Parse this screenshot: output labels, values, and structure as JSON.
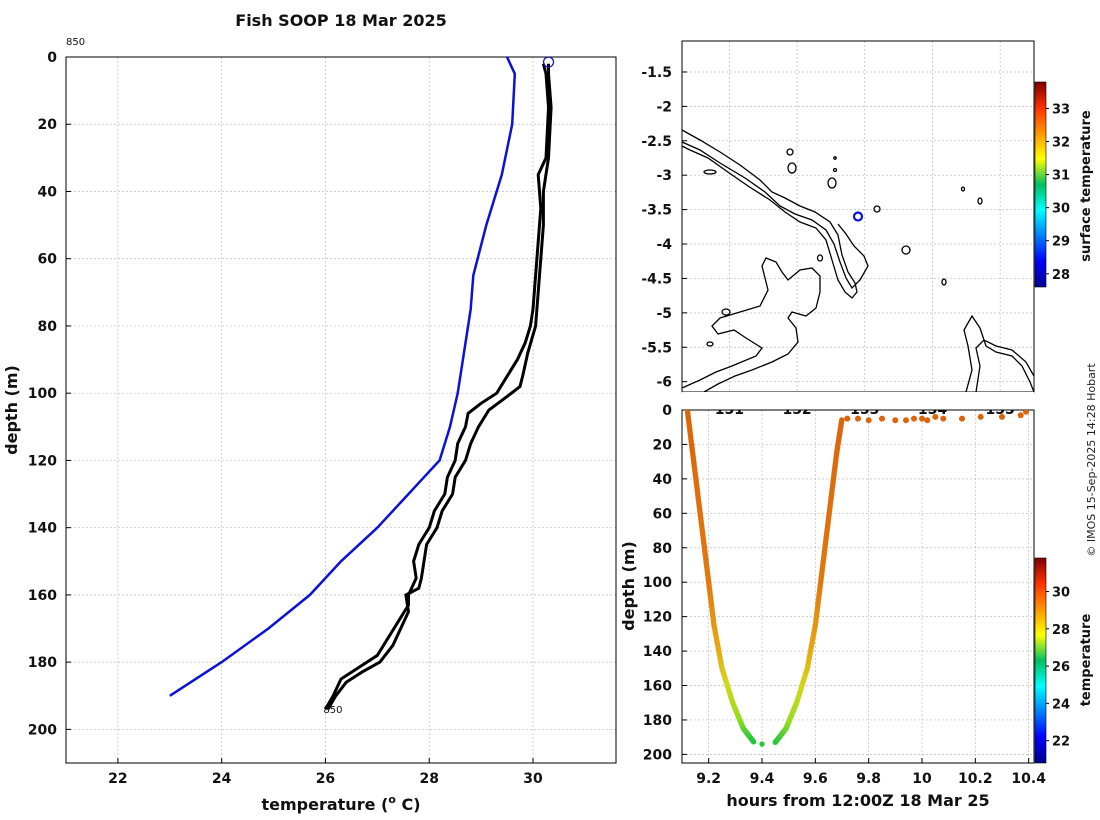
{
  "title": "Fish SOOP 18 Mar 2025",
  "credit": "© IMOS 15-Sep-2025 14:28 Hobart",
  "colors": {
    "climatology": "#0a12d8",
    "profile": "#000000",
    "marker": "#1a1aa8"
  },
  "chart_data": [
    {
      "id": "profile",
      "type": "line",
      "xlabel_main": "temperature (",
      "xlabel_sup": "o",
      "xlabel_end": " C)",
      "ylabel": "depth (m)",
      "xlim": [
        21,
        31.6
      ],
      "ylim": [
        210,
        0
      ],
      "xticks": [
        22,
        24,
        26,
        28,
        30
      ],
      "yticks": [
        0,
        20,
        40,
        60,
        80,
        100,
        120,
        140,
        160,
        180,
        200
      ],
      "top_label": "850",
      "end_label": "850",
      "series": [
        {
          "name": "climatology",
          "points": [
            [
              29.5,
              0
            ],
            [
              29.65,
              5
            ],
            [
              29.6,
              20
            ],
            [
              29.4,
              35
            ],
            [
              29.1,
              50
            ],
            [
              28.85,
              65
            ],
            [
              28.8,
              75
            ],
            [
              28.75,
              80
            ],
            [
              28.6,
              95
            ],
            [
              28.55,
              100
            ],
            [
              28.4,
              110
            ],
            [
              28.2,
              120
            ],
            [
              27.9,
              125
            ],
            [
              27.6,
              130
            ],
            [
              27.0,
              140
            ],
            [
              26.3,
              150
            ],
            [
              25.7,
              160
            ],
            [
              24.9,
              170
            ],
            [
              24.0,
              180
            ],
            [
              23.0,
              190
            ]
          ]
        },
        {
          "name": "profile_down",
          "points": [
            [
              30.2,
              2
            ],
            [
              30.25,
              5
            ],
            [
              30.3,
              15
            ],
            [
              30.25,
              30
            ],
            [
              30.1,
              35
            ],
            [
              30.15,
              45
            ],
            [
              30.1,
              55
            ],
            [
              30.05,
              65
            ],
            [
              30.0,
              75
            ],
            [
              29.95,
              80
            ],
            [
              29.85,
              85
            ],
            [
              29.7,
              90
            ],
            [
              29.5,
              95
            ],
            [
              29.3,
              100
            ],
            [
              29.0,
              103
            ],
            [
              28.75,
              106
            ],
            [
              28.7,
              110
            ],
            [
              28.55,
              115
            ],
            [
              28.5,
              120
            ],
            [
              28.35,
              125
            ],
            [
              28.3,
              130
            ],
            [
              28.1,
              135
            ],
            [
              28.0,
              140
            ],
            [
              27.8,
              145
            ],
            [
              27.7,
              150
            ],
            [
              27.75,
              155
            ],
            [
              27.6,
              160
            ],
            [
              27.6,
              163
            ],
            [
              27.4,
              168
            ],
            [
              27.2,
              173
            ],
            [
              27.0,
              178
            ],
            [
              26.6,
              182
            ],
            [
              26.3,
              185
            ],
            [
              26.15,
              190
            ],
            [
              26.0,
              194
            ]
          ]
        },
        {
          "name": "profile_up",
          "points": [
            [
              30.3,
              2
            ],
            [
              30.3,
              5
            ],
            [
              30.35,
              15
            ],
            [
              30.3,
              30
            ],
            [
              30.2,
              40
            ],
            [
              30.2,
              50
            ],
            [
              30.15,
              60
            ],
            [
              30.1,
              70
            ],
            [
              30.05,
              80
            ],
            [
              29.9,
              88
            ],
            [
              29.8,
              95
            ],
            [
              29.75,
              98
            ],
            [
              29.5,
              101
            ],
            [
              29.15,
              105
            ],
            [
              28.95,
              110
            ],
            [
              28.8,
              115
            ],
            [
              28.7,
              120
            ],
            [
              28.5,
              125
            ],
            [
              28.45,
              130
            ],
            [
              28.25,
              135
            ],
            [
              28.15,
              140
            ],
            [
              27.95,
              145
            ],
            [
              27.9,
              150
            ],
            [
              27.85,
              155
            ],
            [
              27.8,
              158
            ],
            [
              27.55,
              160
            ],
            [
              27.6,
              165
            ],
            [
              27.45,
              170
            ],
            [
              27.3,
              175
            ],
            [
              27.05,
              180
            ],
            [
              26.7,
              183
            ],
            [
              26.4,
              186
            ],
            [
              26.2,
              190
            ],
            [
              26.05,
              194
            ]
          ]
        }
      ],
      "surface_marker": [
        30.3,
        1.5
      ]
    },
    {
      "id": "map",
      "type": "scatter",
      "xlabel": "",
      "ylabel": "",
      "xlim": [
        150.3,
        155.5
      ],
      "ylim": [
        -6.15,
        -1.05
      ],
      "xticks": [
        151,
        152,
        153,
        154,
        155
      ],
      "yticks": [
        -1.5,
        -2,
        -2.5,
        -3,
        -3.5,
        -4,
        -4.5,
        -5,
        -5.5,
        -6
      ],
      "ytick_labels": [
        "-1.5",
        "-2",
        "-2.5",
        "-3",
        "-3.5",
        "-4",
        "-4.5",
        "-5",
        "-5.5",
        "-6"
      ],
      "station": {
        "lon": 152.9,
        "lat": -3.6
      },
      "colorbar": {
        "label": "surface temperature",
        "range": [
          27.6,
          33.8
        ],
        "ticks": [
          28,
          29,
          30,
          31,
          32,
          33
        ]
      }
    },
    {
      "id": "time_depth",
      "type": "scatter",
      "xlabel": "hours from 12:00Z 18 Mar 25",
      "ylabel": "depth (m)",
      "xlim": [
        9.1,
        10.42
      ],
      "ylim": [
        205,
        0
      ],
      "xticks": [
        9.2,
        9.4,
        9.6,
        9.8,
        10,
        10.2,
        10.4
      ],
      "xtick_labels": [
        "9.2",
        "9.4",
        "9.6",
        "9.8",
        "10",
        "10.2",
        "10.4"
      ],
      "yticks": [
        0,
        20,
        40,
        60,
        80,
        100,
        120,
        140,
        160,
        180,
        200
      ],
      "colorbar": {
        "label": "temperature",
        "range": [
          20.8,
          31.8
        ],
        "ticks": [
          22,
          24,
          26,
          28,
          30
        ]
      },
      "down_cast": [
        [
          9.12,
          0
        ],
        [
          9.14,
          25
        ],
        [
          9.16,
          50
        ],
        [
          9.18,
          75
        ],
        [
          9.2,
          100
        ],
        [
          9.22,
          125
        ],
        [
          9.25,
          150
        ],
        [
          9.29,
          170
        ],
        [
          9.33,
          185
        ],
        [
          9.37,
          193
        ]
      ],
      "up_cast": [
        [
          9.45,
          193
        ],
        [
          9.49,
          185
        ],
        [
          9.53,
          170
        ],
        [
          9.57,
          150
        ],
        [
          9.6,
          125
        ],
        [
          9.62,
          100
        ],
        [
          9.64,
          75
        ],
        [
          9.66,
          50
        ],
        [
          9.68,
          25
        ],
        [
          9.7,
          5
        ]
      ],
      "bottom_point": [
        9.4,
        194
      ],
      "surface_points": [
        [
          9.72,
          5
        ],
        [
          9.76,
          5
        ],
        [
          9.8,
          6
        ],
        [
          9.85,
          5
        ],
        [
          9.9,
          6
        ],
        [
          9.94,
          6
        ],
        [
          9.97,
          5
        ],
        [
          10.0,
          5
        ],
        [
          10.02,
          6
        ],
        [
          10.05,
          4
        ],
        [
          10.08,
          5
        ],
        [
          10.15,
          5
        ],
        [
          10.22,
          4
        ],
        [
          10.3,
          4
        ],
        [
          10.37,
          3
        ],
        [
          10.39,
          1
        ]
      ]
    }
  ]
}
